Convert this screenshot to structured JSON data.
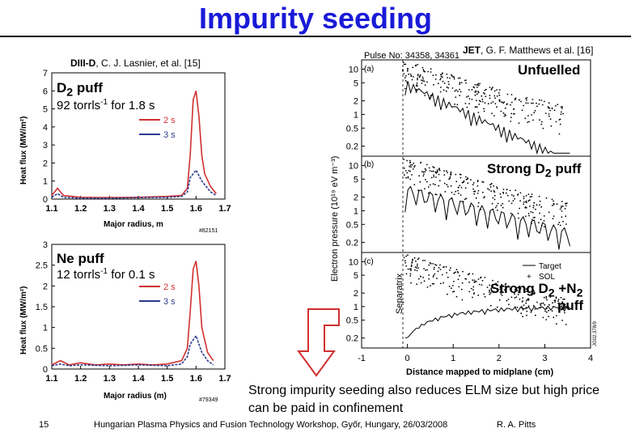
{
  "slide": {
    "title": "Impurity seeding",
    "page_number": "15",
    "workshop": "Hungarian Plasma Physics and Fusion Technology Workshop, Győr, Hungary, 26/03/2008",
    "author": "R. A. Pitts",
    "caption": "Strong impurity seeding also reduces ELM size but high price can be paid in confinement"
  },
  "left": {
    "citation_bold": "DIII-D",
    "citation_rest": ", C. J. Lasnier, et al. [15]",
    "top_panel": {
      "label": "D",
      "label_sub": "2",
      "label_after": " puff",
      "rate_prefix": "92 torrls",
      "rate_sup": "-1",
      "rate_suffix": " for 1.8 s",
      "ylabel": "Heat flux (MW/m²)",
      "xlabel": "Major radius, m",
      "shot": "#82151"
    },
    "bottom_panel": {
      "label": "Ne puff",
      "rate_prefix": "12 torrls",
      "rate_sup": "-1",
      "rate_suffix": " for 0.1 s",
      "ylabel": "Heat flux (MW/m²)",
      "xlabel": "Major radius (m)",
      "shot": "#79349"
    }
  },
  "right": {
    "citation_bold": "JET",
    "citation_rest": ", G. F. Matthews et al. [16]",
    "pulse": "Pulse No: 34358, 34361",
    "panel_a": "(a)",
    "panel_b": "(b)",
    "panel_c": "(c)",
    "label_unfuelled": "Unfuelled",
    "label_strong_prefix": "Strong D",
    "label_strong_sub": "2",
    "label_strong_suffix": " puff",
    "label_n2_prefix": "Strong D",
    "label_n2_sub": "2",
    "label_n2_mid": " +N",
    "label_n2_sub2": "2",
    "label_n2_suffix": "puff",
    "ylabel": "Electron pressure (10¹⁹ eV m⁻³)",
    "xlabel": "Distance mapped to midplane (cm)",
    "separatrix_label": "Separatrix",
    "legend_target": "Target",
    "legend_sol": "SOL",
    "figure_id": "JG02.378/9"
  },
  "chart_data": [
    {
      "type": "line",
      "title": "D2 puff (DIII-D)",
      "xlabel": "Major radius, m",
      "ylabel": "Heat flux (MW/m2)",
      "xlim": [
        1.1,
        1.7
      ],
      "ylim": [
        0,
        7
      ],
      "x_ticks": [
        "1.1",
        "1.2",
        "1.3",
        "1.4",
        "1.5",
        "1.6",
        "1.7"
      ],
      "y_ticks": [
        "0",
        "1",
        "2",
        "3",
        "4",
        "5",
        "6",
        "7"
      ],
      "series": [
        {
          "name": "2 s",
          "color": "#d03030",
          "x": [
            1.1,
            1.12,
            1.14,
            1.2,
            1.3,
            1.4,
            1.5,
            1.55,
            1.57,
            1.58,
            1.59,
            1.6,
            1.61,
            1.62,
            1.63,
            1.65,
            1.67
          ],
          "values": [
            0.2,
            0.6,
            0.2,
            0.1,
            0.08,
            0.1,
            0.15,
            0.2,
            0.6,
            2.5,
            5.5,
            6.0,
            4.6,
            2.4,
            1.4,
            0.7,
            0.3
          ]
        },
        {
          "name": "3 s",
          "color": "#2c3a8c",
          "x": [
            1.1,
            1.12,
            1.14,
            1.2,
            1.3,
            1.4,
            1.5,
            1.55,
            1.57,
            1.58,
            1.6,
            1.61,
            1.62,
            1.63,
            1.65,
            1.67
          ],
          "values": [
            0.1,
            0.3,
            0.1,
            0.05,
            0.05,
            0.08,
            0.1,
            0.15,
            0.4,
            1.2,
            1.6,
            1.3,
            1.0,
            0.8,
            0.4,
            0.2
          ]
        }
      ]
    },
    {
      "type": "line",
      "title": "Ne puff (DIII-D)",
      "xlabel": "Major radius (m)",
      "ylabel": "Heat flux (MW/m2)",
      "xlim": [
        1.1,
        1.7
      ],
      "ylim": [
        0,
        3
      ],
      "x_ticks": [
        "1.1",
        "1.2",
        "1.3",
        "1.4",
        "1.5",
        "1.6",
        "1.7"
      ],
      "y_ticks": [
        "0",
        "0.5",
        "1",
        "1.5",
        "2",
        "2.5",
        "3"
      ],
      "series": [
        {
          "name": "2 s",
          "color": "#d03030",
          "x": [
            1.1,
            1.13,
            1.16,
            1.2,
            1.25,
            1.3,
            1.35,
            1.4,
            1.45,
            1.5,
            1.55,
            1.57,
            1.58,
            1.59,
            1.6,
            1.61,
            1.62,
            1.64,
            1.66
          ],
          "values": [
            0.1,
            0.2,
            0.1,
            0.15,
            0.1,
            0.12,
            0.1,
            0.12,
            0.1,
            0.12,
            0.2,
            0.5,
            1.4,
            2.4,
            2.6,
            2.0,
            1.0,
            0.4,
            0.2
          ]
        },
        {
          "name": "3 s",
          "color": "#2c3a8c",
          "x": [
            1.1,
            1.13,
            1.16,
            1.2,
            1.3,
            1.4,
            1.5,
            1.55,
            1.57,
            1.58,
            1.6,
            1.61,
            1.62,
            1.64,
            1.66
          ],
          "values": [
            0.08,
            0.12,
            0.08,
            0.1,
            0.08,
            0.1,
            0.08,
            0.12,
            0.3,
            0.6,
            0.8,
            0.6,
            0.4,
            0.2,
            0.1
          ]
        }
      ]
    },
    {
      "type": "scatter",
      "title": "JET electron pressure profiles",
      "xlabel": "Distance mapped to midplane (cm)",
      "ylabel": "Electron pressure (10^19 eV m^-3)",
      "xlim": [
        -1,
        4
      ],
      "x_ticks": [
        "-1",
        "0",
        "1",
        "2",
        "3",
        "4"
      ],
      "y_scale": "log",
      "y_ticks": [
        "10",
        "5",
        "2",
        "1",
        "0.5",
        "0.2"
      ],
      "panels": [
        "(a) Unfuelled",
        "(b) Strong D2 puff",
        "(c) Strong D2 +N2 puff"
      ],
      "legend": [
        "Target",
        "SOL"
      ]
    }
  ]
}
